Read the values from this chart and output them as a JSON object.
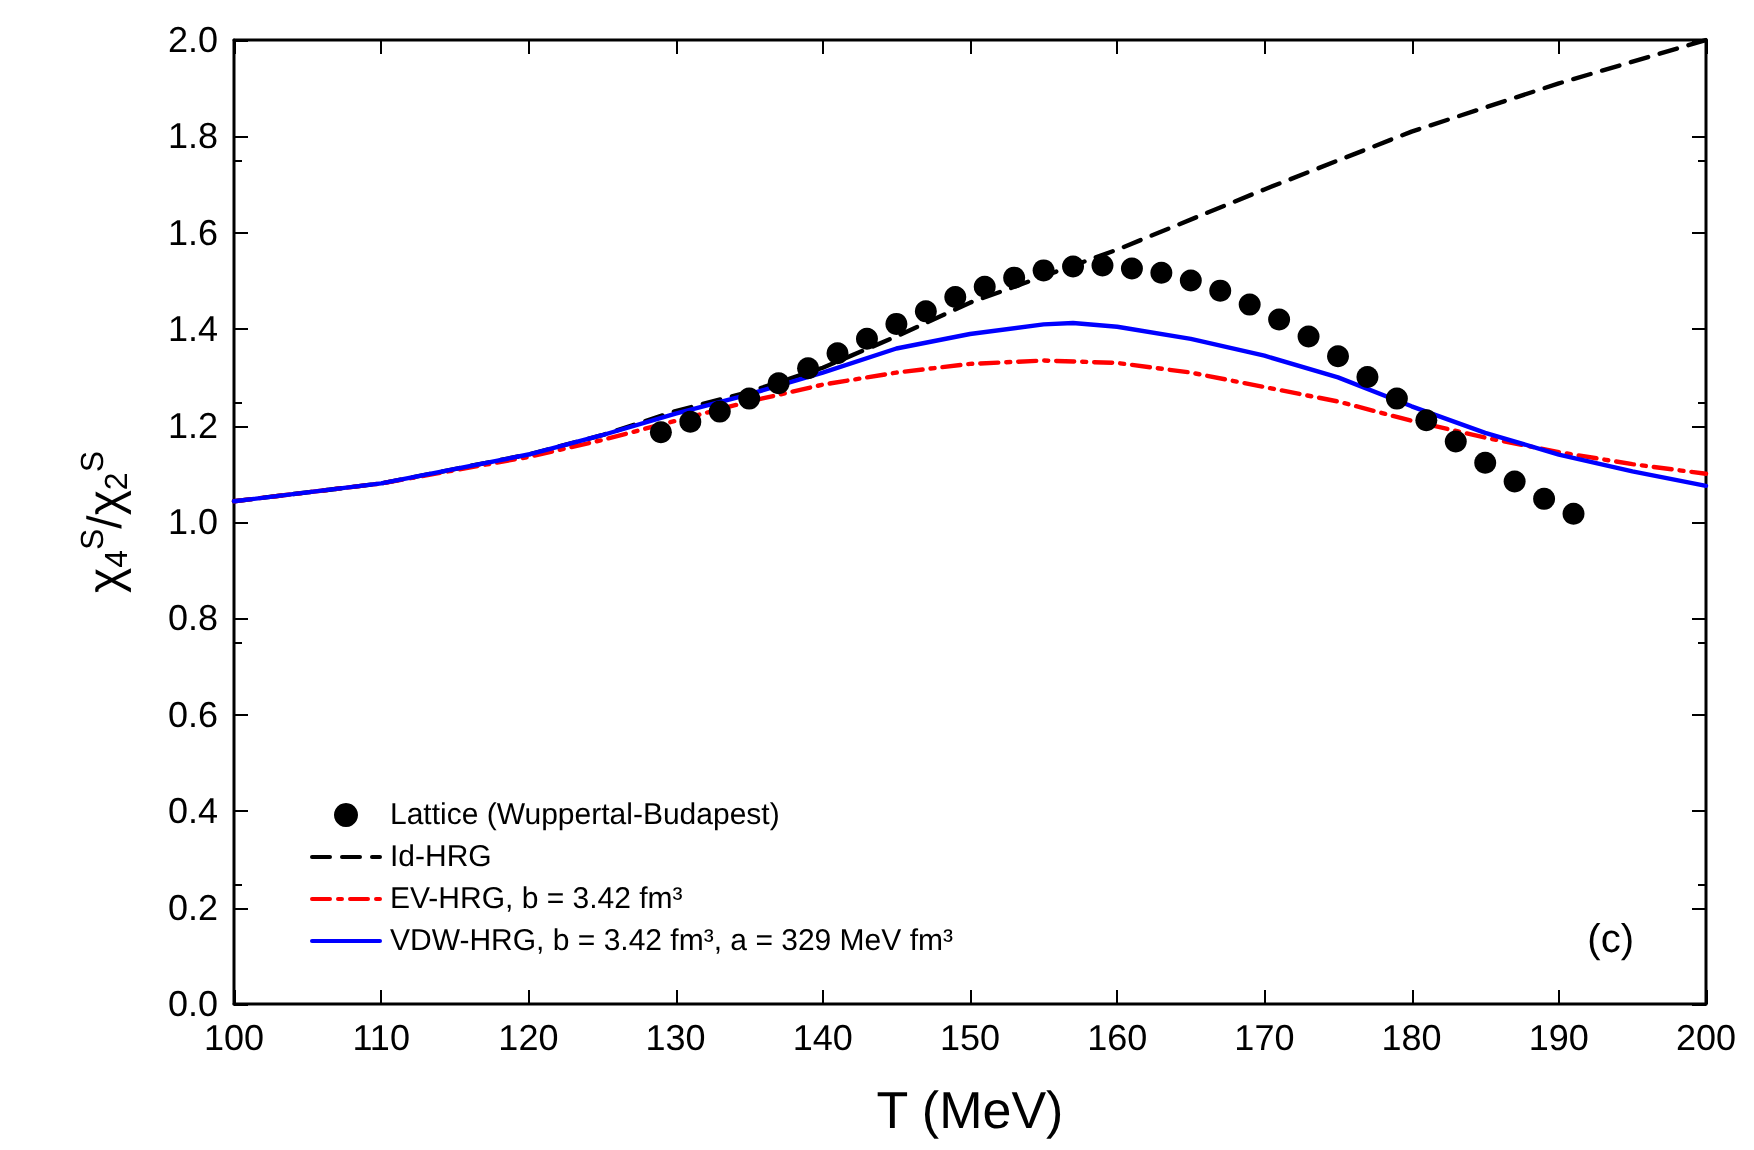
{
  "chart_data": {
    "type": "line",
    "xlabel": "T (MeV)",
    "ylabel": "χ$_{4}$$^{S}$/χ$_{2}$$^{S}$",
    "xlim": [
      100,
      200
    ],
    "xticks": [
      100,
      110,
      120,
      130,
      140,
      150,
      160,
      170,
      180,
      190,
      200
    ],
    "ylim": [
      0,
      2
    ],
    "yticks": [
      {
        "value": 0,
        "label": "0.0"
      },
      0.2,
      0.4,
      0.6,
      0.8,
      {
        "value": 1,
        "label": "1.0"
      },
      1.2,
      1.4,
      1.6,
      1.8,
      {
        "value": 2,
        "label": "2.0"
      }
    ],
    "grid": false,
    "legend": "bottom left",
    "annotations": [
      "(c)"
    ],
    "series": [
      {
        "name": "Lattice (Wuppertal-Budapest)",
        "type": "scatter",
        "marker": "circle",
        "color": "#000000",
        "x": [
          129,
          131,
          133,
          135,
          137,
          139,
          141,
          143,
          145,
          147,
          149,
          151,
          153,
          155,
          157,
          159,
          161,
          163,
          165,
          167,
          169,
          171,
          173,
          175,
          177,
          179,
          181,
          183,
          185,
          187,
          189,
          191
        ],
        "values": [
          1.186,
          1.208,
          1.229,
          1.256,
          1.288,
          1.319,
          1.35,
          1.38,
          1.411,
          1.437,
          1.467,
          1.488,
          1.507,
          1.522,
          1.53,
          1.532,
          1.526,
          1.517,
          1.501,
          1.48,
          1.451,
          1.42,
          1.385,
          1.344,
          1.301,
          1.256,
          1.211,
          1.167,
          1.123,
          1.084,
          1.048,
          1.017
        ]
      },
      {
        "name": "Id-HRG",
        "line_style": "dashed",
        "color": "#000000",
        "x": [
          100,
          110,
          120,
          125,
          130,
          135,
          140,
          145,
          150,
          155,
          160,
          170,
          180,
          190,
          200
        ],
        "values": [
          1.043,
          1.08,
          1.14,
          1.18,
          1.23,
          1.27,
          1.32,
          1.385,
          1.455,
          1.51,
          1.565,
          1.69,
          1.81,
          1.91,
          2.0
        ]
      },
      {
        "name": "EV-HRG, b = 3.42 fm³",
        "line_style": "dashdot",
        "color": "#ff0000",
        "x": [
          100,
          110,
          120,
          125,
          130,
          135,
          140,
          145,
          150,
          155,
          160,
          165,
          170,
          175,
          180,
          185,
          190,
          195,
          200
        ],
        "values": [
          1.043,
          1.08,
          1.135,
          1.17,
          1.21,
          1.25,
          1.285,
          1.31,
          1.328,
          1.335,
          1.33,
          1.31,
          1.28,
          1.25,
          1.21,
          1.175,
          1.145,
          1.12,
          1.1
        ]
      },
      {
        "name": "VDW-HRG, b = 3.42 fm³, a = 329 MeV fm³",
        "line_style": "solid",
        "color": "#0000ff",
        "x": [
          100,
          110,
          120,
          125,
          130,
          135,
          140,
          145,
          150,
          155,
          157,
          160,
          165,
          170,
          175,
          180,
          185,
          190,
          195,
          200
        ],
        "values": [
          1.043,
          1.08,
          1.14,
          1.18,
          1.225,
          1.265,
          1.31,
          1.36,
          1.39,
          1.41,
          1.413,
          1.405,
          1.38,
          1.345,
          1.3,
          1.24,
          1.185,
          1.14,
          1.105,
          1.075
        ]
      }
    ]
  }
}
